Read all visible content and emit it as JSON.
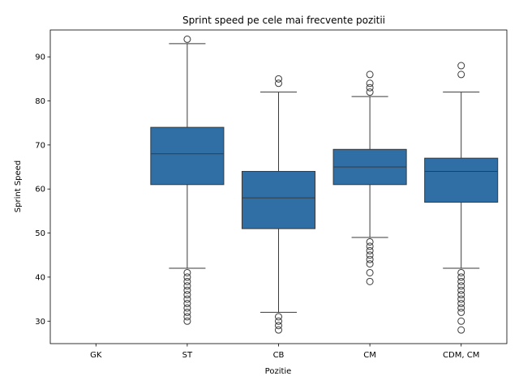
{
  "chart_data": {
    "type": "box",
    "title": "Sprint speed pe cele mai frecvente pozitii",
    "xlabel": "Pozitie",
    "ylabel": "Sprint Speed",
    "categories": [
      "GK",
      "ST",
      "CB",
      "CM",
      "CDM, CM"
    ],
    "yticks": [
      30,
      40,
      50,
      60,
      70,
      80,
      90
    ],
    "ylim": [
      24.9,
      96.1
    ],
    "grid": false,
    "box_color": "#2f6fa6",
    "line_color": "#3a3a3a",
    "boxes": [
      {
        "category": "GK",
        "empty": true
      },
      {
        "category": "ST",
        "q1": 61,
        "median": 68,
        "q3": 74,
        "whisker_low": 42,
        "whisker_high": 93,
        "outliers": [
          94,
          41,
          40,
          39,
          38,
          37,
          36,
          35,
          34,
          33,
          32,
          31,
          30
        ]
      },
      {
        "category": "CB",
        "q1": 51,
        "median": 58,
        "q3": 64,
        "whisker_low": 32,
        "whisker_high": 82,
        "outliers": [
          85,
          84,
          31,
          30,
          29,
          28
        ]
      },
      {
        "category": "CM",
        "q1": 61,
        "median": 65,
        "q3": 69,
        "whisker_low": 49,
        "whisker_high": 81,
        "outliers": [
          86,
          84,
          83,
          82,
          48,
          47,
          46,
          45,
          44,
          43,
          41,
          39
        ]
      },
      {
        "category": "CDM, CM",
        "q1": 57,
        "median": 64,
        "q3": 67,
        "whisker_low": 42,
        "whisker_high": 82,
        "outliers": [
          88,
          86,
          41,
          40,
          39,
          38,
          37,
          36,
          35,
          34,
          33,
          32,
          30,
          28
        ]
      }
    ]
  }
}
